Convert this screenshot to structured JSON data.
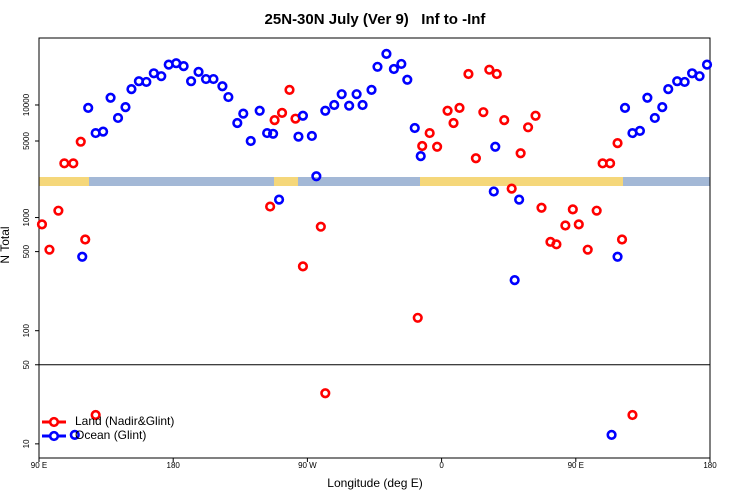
{
  "chart_data": {
    "type": "scatter",
    "title": "25N-30N July (Ver 9)   Inf to -Inf",
    "xlabel": "Longitude (deg E)",
    "ylabel": "N Total",
    "xlim": [
      90,
      540
    ],
    "xticks": [
      {
        "value": 90,
        "label": "90 E"
      },
      180,
      {
        "value": 270,
        "label": "90 W"
      },
      {
        "value": 360,
        "label": "0"
      },
      {
        "value": 450,
        "label": "90 E"
      },
      {
        "value": 540,
        "label": "180"
      }
    ],
    "ylim": [
      0,
      19300
    ],
    "yticks": [
      5000,
      10000
    ],
    "y2lim": [
      7.5,
      1900
    ],
    "y2ticks": [
      10,
      50,
      100,
      500,
      1000
    ],
    "y2log": true,
    "legend": "bottom-left",
    "series": [
      {
        "name": "Land (Nadir&Glint)",
        "color": "#ff0000",
        "x": [
          107,
          113,
          118,
          248,
          253,
          258,
          262,
          347,
          352,
          357,
          364,
          368,
          372,
          378,
          383,
          388,
          392,
          397,
          402,
          413,
          418,
          423,
          468,
          473,
          478
        ],
        "values": [
          1900,
          1900,
          4900,
          7900,
          8900,
          12100,
          8100,
          4300,
          6100,
          4200,
          9200,
          7500,
          9600,
          14300,
          2600,
          9000,
          14900,
          14300,
          7900,
          3300,
          6900,
          8500,
          1900,
          1900,
          4700
        ]
      },
      {
        "name": "Ocean (Glint)",
        "color": "#0000ff",
        "x": [
          123,
          128,
          133,
          138,
          143,
          148,
          152,
          157,
          162,
          167,
          172,
          177,
          182,
          187,
          192,
          197,
          202,
          207,
          213,
          217,
          223,
          227,
          232,
          238,
          243,
          247,
          264,
          267,
          273,
          276,
          282,
          288,
          293,
          298,
          303,
          307,
          313,
          317,
          323,
          328,
          333,
          337,
          342,
          346,
          396,
          483,
          488,
          493,
          498,
          503,
          508,
          512,
          518,
          523,
          528,
          533,
          538
        ],
        "values": [
          9600,
          6100,
          6300,
          11000,
          8200,
          9700,
          12200,
          13300,
          13200,
          14400,
          14000,
          15600,
          15800,
          15400,
          13300,
          14600,
          13600,
          13600,
          12600,
          11100,
          7500,
          8800,
          5000,
          9200,
          6100,
          6000,
          5600,
          8500,
          5700,
          100,
          9200,
          10000,
          11500,
          9900,
          11500,
          10000,
          12100,
          15300,
          17100,
          15000,
          15700,
          13500,
          6800,
          2900,
          4200,
          9600,
          6100,
          6400,
          11000,
          8200,
          9700,
          12200,
          13300,
          13200,
          14400,
          14000,
          15600
        ]
      },
      {
        "color": "#ff0000",
        "axis": "y2",
        "x": [
          92,
          97,
          103,
          121,
          128,
          245,
          267,
          279,
          282,
          344,
          407,
          427,
          433,
          437,
          443,
          448,
          452,
          458,
          464,
          481,
          488
        ],
        "values": [
          870,
          520,
          1150,
          640,
          18,
          1250,
          370,
          830,
          28,
          130,
          1800,
          1220,
          610,
          580,
          850,
          1180,
          870,
          520,
          1150,
          640,
          18
        ]
      },
      {
        "color": "#0000ff",
        "axis": "y2",
        "x": [
          114,
          119,
          251,
          395,
          409,
          412,
          474,
          478
        ],
        "values": [
          12,
          450,
          1440,
          1700,
          280,
          1440,
          12,
          450
        ]
      }
    ]
  }
}
